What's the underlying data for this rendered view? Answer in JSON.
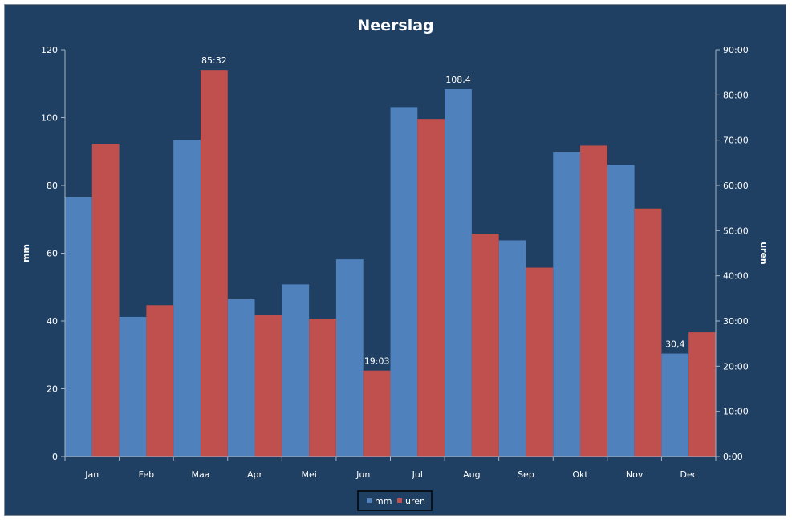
{
  "chart_data": {
    "type": "bar",
    "title": "Neerslag",
    "xlabel": "",
    "ylabel": "mm",
    "y2label": "uren",
    "categories": [
      "Jan",
      "Feb",
      "Maa",
      "Apr",
      "Mei",
      "Jun",
      "Jul",
      "Aug",
      "Sep",
      "Okt",
      "Nov",
      "Dec"
    ],
    "ylim": [
      0,
      120
    ],
    "y_ticks": [
      "0",
      "20",
      "40",
      "60",
      "80",
      "100",
      "120"
    ],
    "y2lim_hours": [
      0,
      90
    ],
    "y2_ticks": [
      "0:00",
      "10:00",
      "20:00",
      "30:00",
      "40:00",
      "50:00",
      "60:00",
      "70:00",
      "80:00",
      "90:00"
    ],
    "grid": false,
    "legend_position": "bottom",
    "series": [
      {
        "name": "mm",
        "axis": "left",
        "color": "#4f81bd",
        "values": [
          76.5,
          41.2,
          93.4,
          46.4,
          50.8,
          58.2,
          103.1,
          108.4,
          63.8,
          89.7,
          86.1,
          30.4
        ]
      },
      {
        "name": "uren",
        "axis": "right",
        "color": "#c0504d",
        "values": [
          69.2,
          33.5,
          85.53,
          31.4,
          30.5,
          19.05,
          74.7,
          49.3,
          41.8,
          68.8,
          54.9,
          27.5
        ]
      }
    ],
    "data_labels": [
      {
        "series": 1,
        "index": 2,
        "text": "85:32"
      },
      {
        "series": 1,
        "index": 5,
        "text": "19:03"
      },
      {
        "series": 0,
        "index": 7,
        "text": "108,4"
      },
      {
        "series": 0,
        "index": 11,
        "text": "30,4"
      }
    ]
  },
  "style": {
    "background": "#1f4063",
    "text_color": "#ffffff",
    "axis_color": "#a6b3c2"
  }
}
